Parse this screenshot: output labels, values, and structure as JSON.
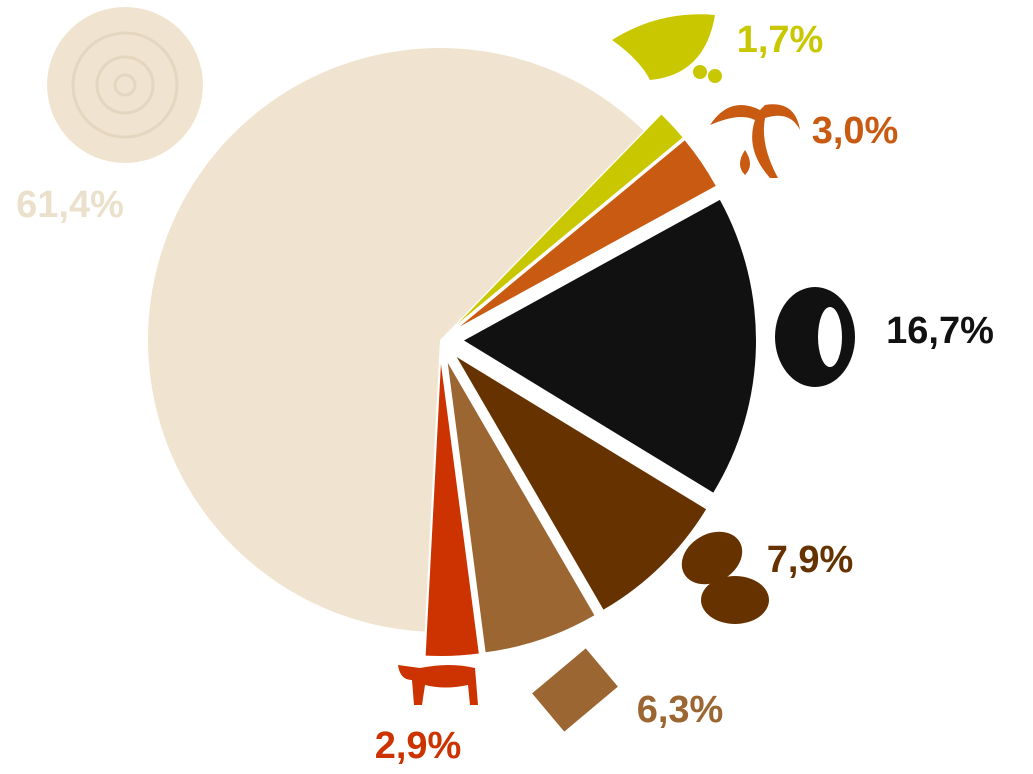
{
  "chart_data": {
    "type": "pie",
    "values": [
      61.4,
      1.7,
      3.0,
      16.7,
      7.9,
      6.3,
      2.9
    ],
    "value_labels": [
      "61,4%",
      "1,7%",
      "3,0%",
      "16,7%",
      "7,9%",
      "6,3%",
      "2,9%"
    ],
    "colors": [
      "#f0e4d1",
      "#c9c800",
      "#c85a12",
      "#111111",
      "#663300",
      "#9b6632",
      "#cc3300"
    ]
  }
}
